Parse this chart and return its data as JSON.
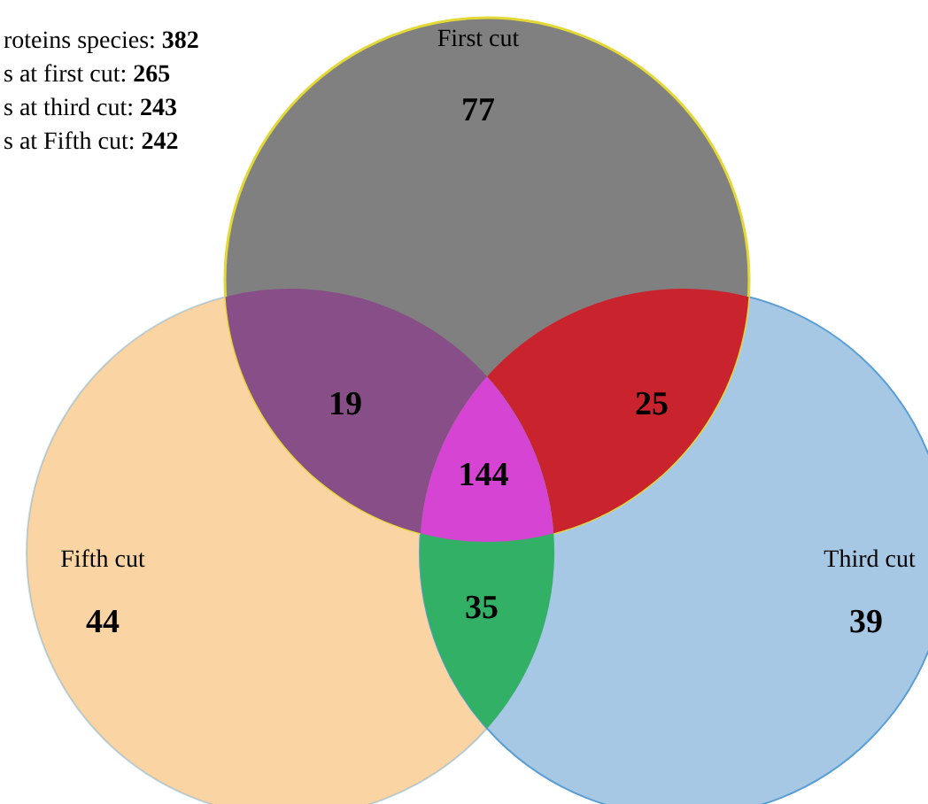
{
  "chart_data": {
    "type": "other",
    "categories": [
      "First cut",
      "Third cut",
      "Fifth cut"
    ],
    "values": [
      77,
      39,
      44
    ],
    "colors": [
      "#808080",
      "#a6c8e5",
      "#fad5a3"
    ],
    "data_labels": true,
    "annotations": [
      "roteins species: 382",
      "s at first cut: 265",
      "s at third cut: 243",
      "s at Fifth cut: 242",
      "19",
      "25",
      "35",
      "144"
    ]
  }
}
